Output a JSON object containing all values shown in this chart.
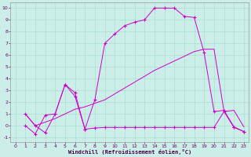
{
  "bg_color": "#cceee8",
  "grid_color": "#aaddcc",
  "line_color": "#cc00cc",
  "xlabel": "Windchill (Refroidissement éolien,°C)",
  "xlim": [
    -0.5,
    23.5
  ],
  "ylim": [
    -1.4,
    10.5
  ],
  "xticks": [
    0,
    1,
    2,
    3,
    4,
    5,
    6,
    7,
    8,
    9,
    10,
    11,
    12,
    13,
    14,
    15,
    16,
    17,
    18,
    19,
    20,
    21,
    22,
    23
  ],
  "yticks": [
    -1,
    0,
    1,
    2,
    3,
    4,
    5,
    6,
    7,
    8,
    9,
    10
  ],
  "curve1_x": [
    1,
    2,
    3,
    4,
    5,
    6,
    7,
    8,
    9,
    10,
    11,
    12,
    13,
    14,
    15,
    16,
    17,
    18,
    19,
    20,
    21,
    22,
    23
  ],
  "curve1_y": [
    1.0,
    0.0,
    -0.6,
    1.0,
    3.5,
    2.5,
    -0.3,
    2.2,
    7.0,
    7.8,
    8.5,
    8.8,
    9.0,
    10.0,
    10.0,
    10.0,
    9.3,
    9.2,
    6.2,
    1.2,
    1.3,
    -0.1,
    -0.5
  ],
  "curve2_x": [
    1,
    2,
    3,
    4,
    5,
    6,
    7,
    8,
    9,
    10,
    11,
    12,
    13,
    14,
    15,
    16,
    17,
    18,
    19,
    20,
    21,
    22,
    23
  ],
  "curve2_y": [
    0.0,
    -0.7,
    0.9,
    1.0,
    3.5,
    2.8,
    -0.3,
    -0.2,
    -0.15,
    -0.15,
    -0.15,
    -0.15,
    -0.15,
    -0.15,
    -0.15,
    -0.15,
    -0.15,
    -0.15,
    -0.15,
    -0.15,
    1.2,
    -0.15,
    -0.5
  ],
  "curve3_x": [
    1,
    2,
    3,
    4,
    5,
    6,
    7,
    8,
    9,
    10,
    11,
    12,
    13,
    14,
    15,
    16,
    17,
    18,
    19,
    20,
    21,
    22,
    23
  ],
  "curve3_y": [
    1.0,
    0.0,
    0.3,
    0.6,
    1.0,
    1.4,
    1.6,
    1.9,
    2.2,
    2.7,
    3.2,
    3.7,
    4.2,
    4.7,
    5.1,
    5.5,
    5.9,
    6.3,
    6.5,
    6.5,
    1.2,
    1.3,
    -0.1
  ]
}
